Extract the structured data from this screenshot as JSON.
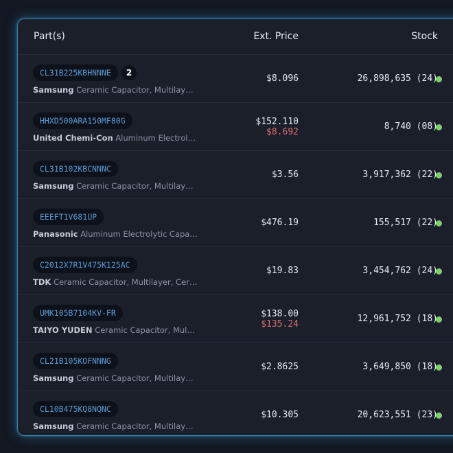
{
  "header": {
    "part": "Part(s)",
    "price": "Ext. Price",
    "stock": "Stock"
  },
  "accent_color": "#5e9cd6",
  "sale_color": "#de6c6c",
  "stock_ok_color": "#7fcf6e",
  "rows": [
    {
      "part": "CL31B225KBHNNNE",
      "badge": "2",
      "mfr": "Samsung",
      "desc": "Ceramic Capacitor, Multilayer, C...",
      "price": "$8.096",
      "sale": "",
      "stock": "26,898,635 (24)"
    },
    {
      "part": "HHXD500ARA150MF80G",
      "badge": "",
      "mfr": "United Chemi-Con",
      "desc": "Aluminum Electrolytic ...",
      "price": "$152.110",
      "sale": "$8.692",
      "stock": "8,740 (08)"
    },
    {
      "part": "CL31B102KBCNNNC",
      "badge": "",
      "mfr": "Samsung",
      "desc": "Ceramic Capacitor, Multilayer, C...",
      "price": "$3.56",
      "sale": "",
      "stock": "3,917,362 (22)"
    },
    {
      "part": "EEEFT1V681UP",
      "badge": "",
      "mfr": "Panasonic",
      "desc": "Aluminum Electrolytic Capacitor...",
      "price": "$476.19",
      "sale": "",
      "stock": "155,517 (22)"
    },
    {
      "part": "C2012X7R1V475K125AC",
      "badge": "",
      "mfr": "TDK",
      "desc": "Ceramic Capacitor, Multilayer, Cerami...",
      "price": "$19.83",
      "sale": "",
      "stock": "3,454,762 (24)"
    },
    {
      "part": "UMK105B7104KV-FR",
      "badge": "",
      "mfr": "TAIYO YUDEN",
      "desc": "Ceramic Capacitor, Multilay...",
      "price": "$138.00",
      "sale": "$135.24",
      "stock": "12,961,752 (18)"
    },
    {
      "part": "CL21B105KOFNNNG",
      "badge": "",
      "mfr": "Samsung",
      "desc": "Ceramic Capacitor, Multilayer, C...",
      "price": "$2.8625",
      "sale": "",
      "stock": "3,649,850 (18)"
    },
    {
      "part": "CL10B475KQ8NQNC",
      "badge": "",
      "mfr": "Samsung",
      "desc": "Ceramic Capacitor, Multilayer, C...",
      "price": "$10.305",
      "sale": "",
      "stock": "20,623,551 (23)"
    }
  ]
}
